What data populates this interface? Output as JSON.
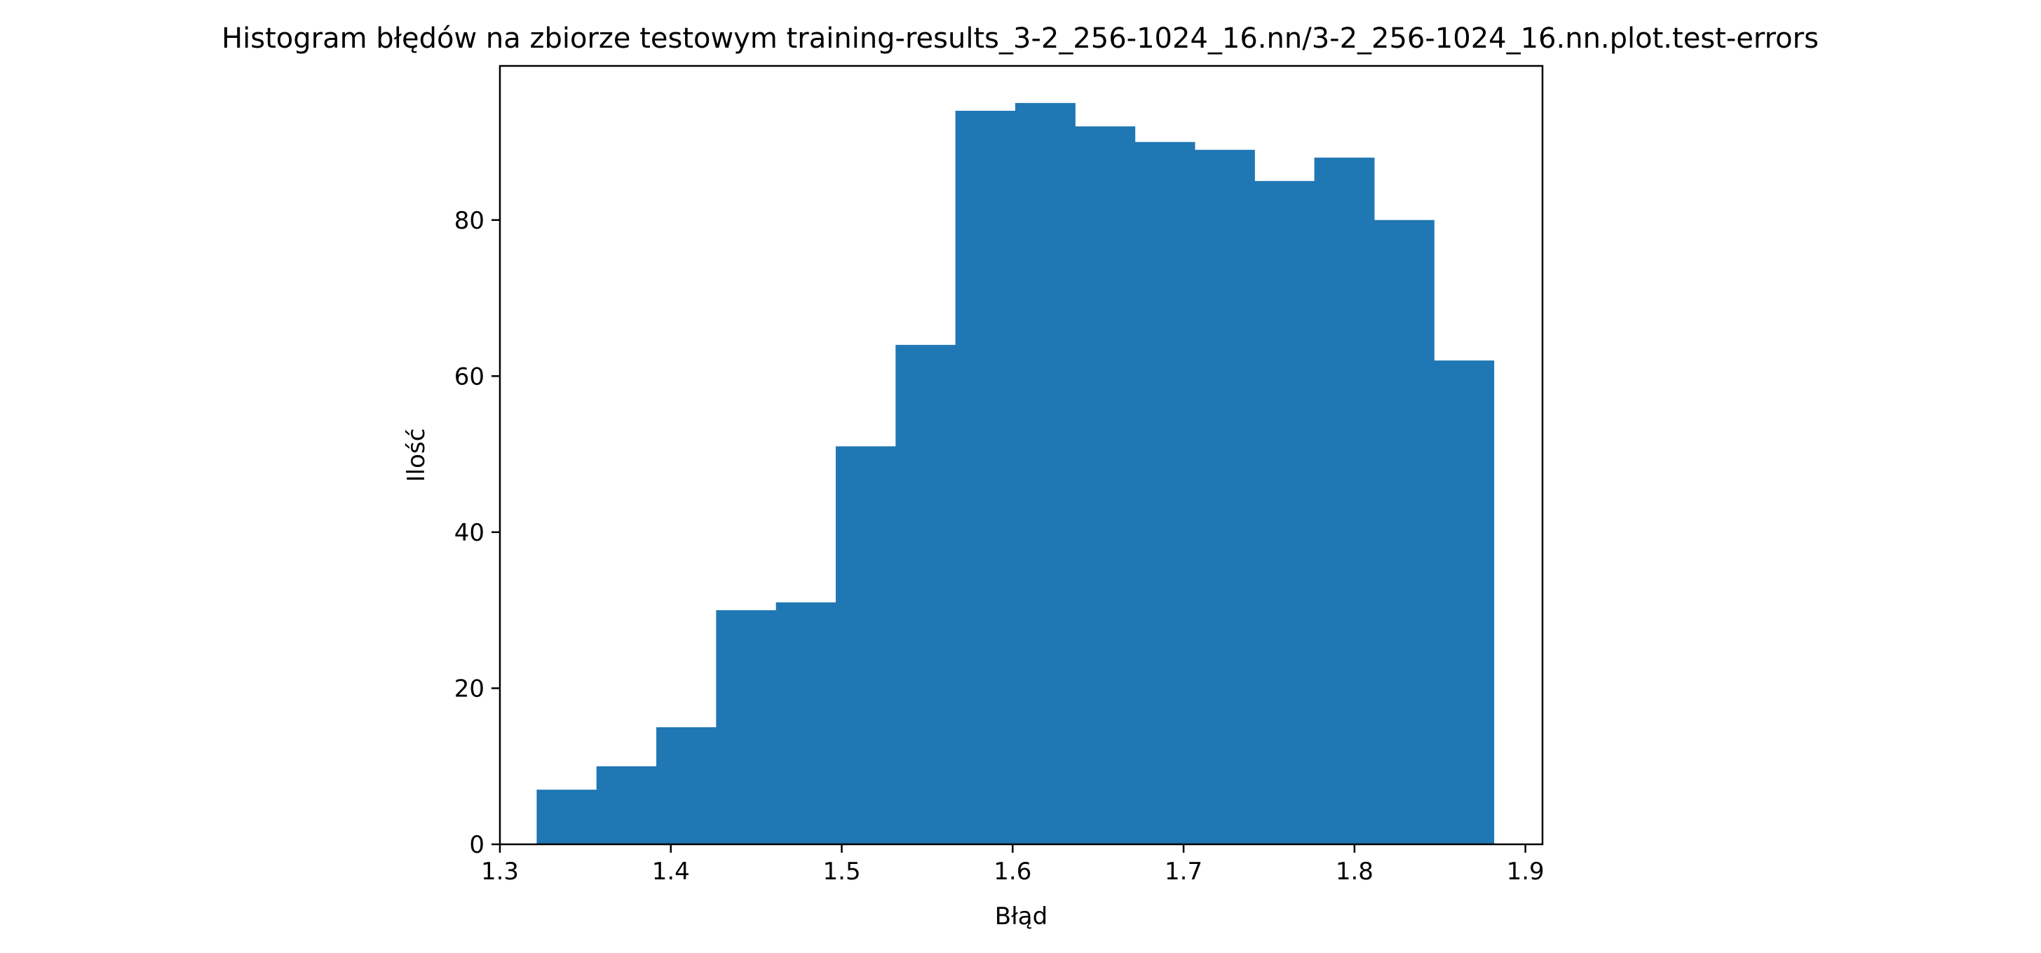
{
  "chart_data": {
    "type": "bar",
    "title": "Histogram błędów na zbiorze testowym training-results_3-2_256-1024_16.nn/3-2_256-1024_16.nn.plot.test-errors",
    "xlabel": "Błąd",
    "ylabel": "Ilość",
    "xlim": [
      1.3,
      1.91
    ],
    "ylim": [
      0,
      99.75
    ],
    "bin_edges": [
      1.3215,
      1.3565,
      1.3915,
      1.4265,
      1.4615,
      1.4965,
      1.5315,
      1.5665,
      1.6015,
      1.6365,
      1.6715,
      1.7065,
      1.7415,
      1.7765,
      1.8115,
      1.8465,
      1.8815
    ],
    "values": [
      7,
      10,
      15,
      30,
      31,
      51,
      64,
      94,
      95,
      92,
      90,
      89,
      85,
      88,
      80,
      62
    ],
    "x_ticks": [
      1.3,
      1.4,
      1.5,
      1.6,
      1.7,
      1.8,
      1.9
    ],
    "y_ticks": [
      0,
      20,
      40,
      60,
      80
    ],
    "bar_color": "#1f77b4",
    "grid": false,
    "legend": false
  }
}
